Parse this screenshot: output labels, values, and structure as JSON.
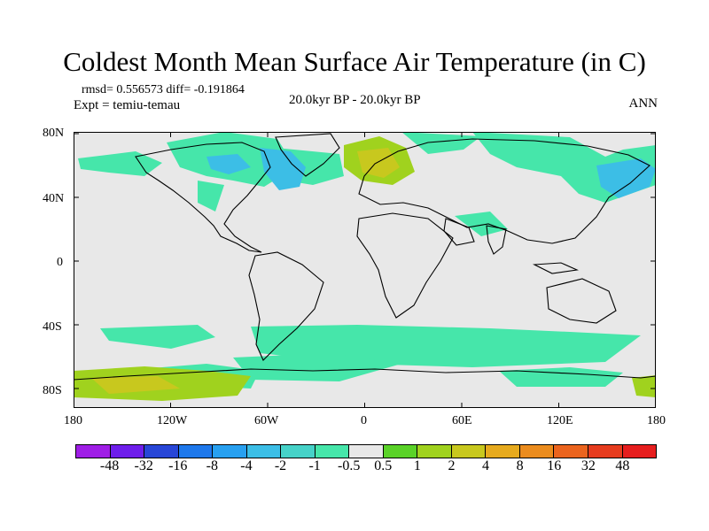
{
  "title": "Coldest Month Mean Surface Air Temperature (in C)",
  "stats_line": "rmsd= 0.556573 diff= -0.191864",
  "experiment": "Expt = temiu-temau",
  "period": "20.0kyr BP - 20.0kyr BP",
  "season": "ANN",
  "map": {
    "x_ticks": [
      "180",
      "120W",
      "60W",
      "0",
      "60E",
      "120E",
      "180"
    ],
    "y_ticks": [
      "80N",
      "40N",
      "0",
      "40S",
      "80S"
    ],
    "background_color": "#e8e8e8"
  },
  "colorbar": {
    "colors": [
      "#9f1ee6",
      "#6e1eeb",
      "#2846d7",
      "#1e78eb",
      "#28a0f0",
      "#3cbee6",
      "#46d2c8",
      "#46e6aa",
      "#e8e8e8",
      "#5ad228",
      "#a0d21e",
      "#c8c81e",
      "#e6aa1e",
      "#eb8c1e",
      "#eb641e",
      "#e63c1e",
      "#e61e1e"
    ],
    "labels": [
      "-48",
      "-32",
      "-16",
      "-8",
      "-4",
      "-2",
      "-1",
      "-0.5",
      "0.5",
      "1",
      "2",
      "4",
      "8",
      "16",
      "32",
      "48"
    ]
  }
}
